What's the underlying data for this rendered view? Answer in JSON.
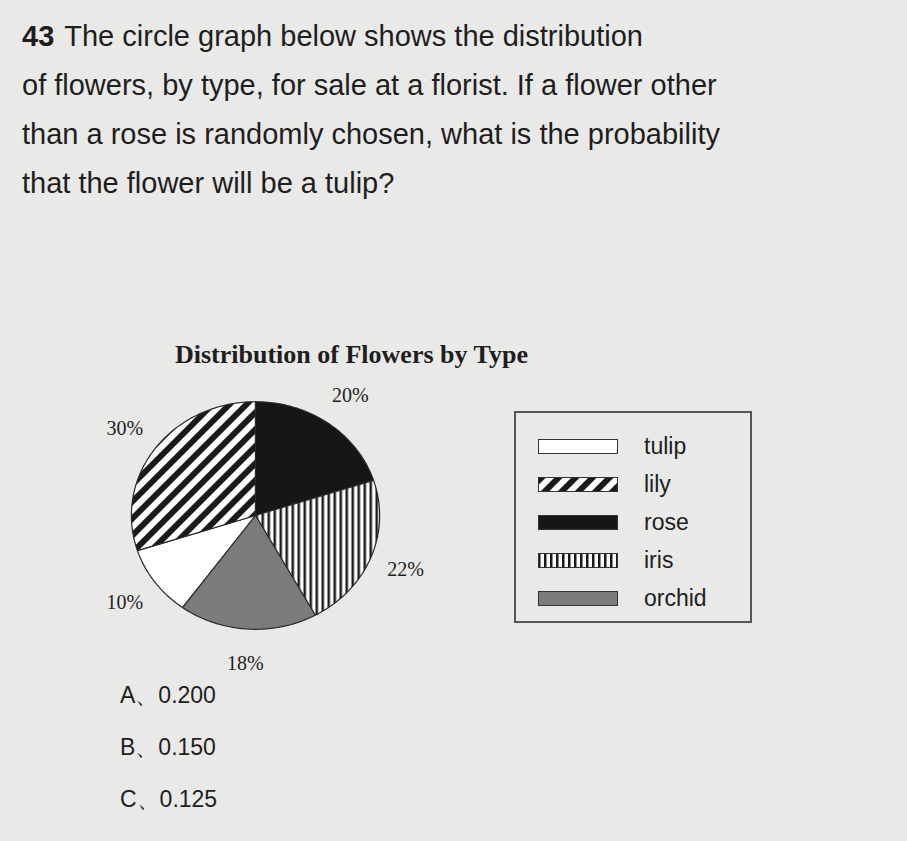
{
  "question": {
    "number": "43",
    "lines": [
      "The circle graph below shows the distribution",
      "of flowers, by type, for sale at a florist. If a flower other",
      "than a rose is randomly chosen, what is the probability",
      "that the flower will be a tulip?"
    ]
  },
  "chart_data": {
    "type": "pie",
    "title": "Distribution of Flowers by Type",
    "series": [
      {
        "name": "tulip",
        "color": "#ffffff",
        "values": [
          10
        ],
        "value_labels": [
          "10%"
        ]
      },
      {
        "name": "lily",
        "color": "#1a1a1a",
        "marker": "diagonal",
        "values": [
          30
        ],
        "value_labels": [
          "30%"
        ]
      },
      {
        "name": "rose",
        "color": "#161616",
        "values": [
          20
        ],
        "value_labels": [
          "20%"
        ]
      },
      {
        "name": "iris",
        "color": "#1a1a1a",
        "marker": "vertical",
        "values": [
          22
        ],
        "value_labels": [
          "22%"
        ]
      },
      {
        "name": "orchid",
        "color": "#7b7b79",
        "values": [
          18
        ],
        "value_labels": [
          "18%"
        ]
      }
    ],
    "data_labels": true,
    "legend": "right",
    "tick_labels": false
  },
  "choices": [
    {
      "label": "A、",
      "text": "0.200"
    },
    {
      "label": "B、",
      "text": "0.150"
    },
    {
      "label": "C、",
      "text": "0.125"
    }
  ]
}
